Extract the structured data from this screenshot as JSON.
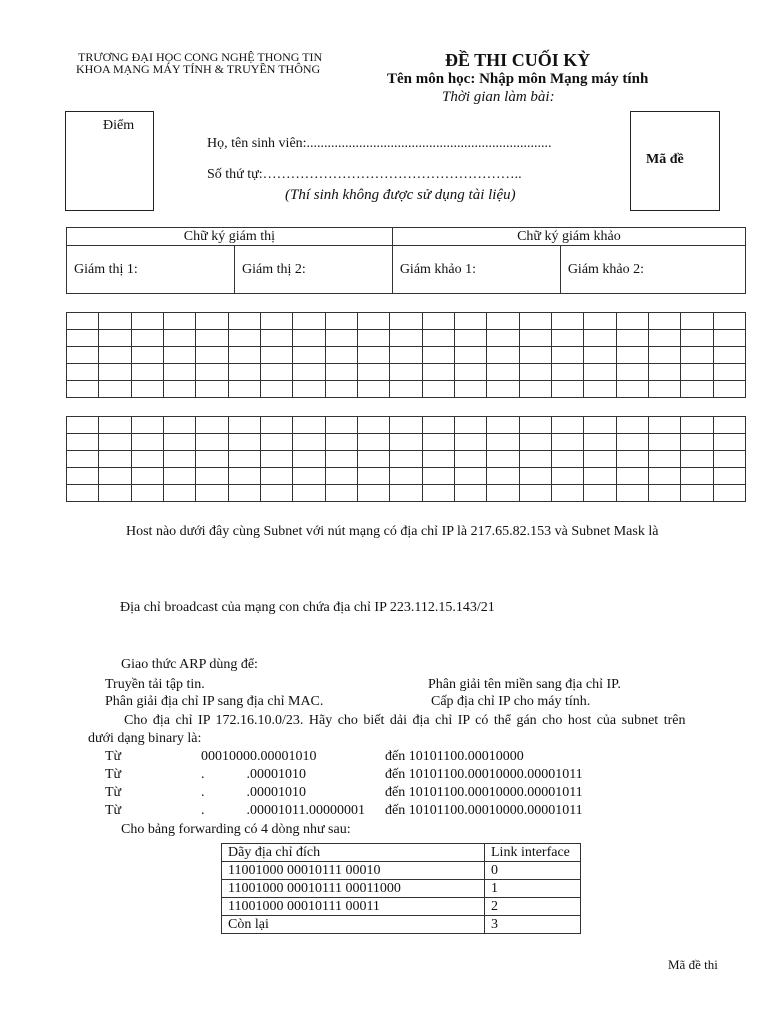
{
  "header": {
    "university": "TRƯƠNG ĐẠI HỌC CONG NGHỆ THONG TIN",
    "faculty": "KHOA MẠNG MÁY TÍNH & TRUYỀN THÔNG",
    "exam_title": "ĐỀ THI CUỐI KỲ",
    "subject": "Tên môn học: Nhập môn Mạng máy tính",
    "time": "Thời gian làm bài:"
  },
  "info": {
    "score_label": "Điểm",
    "name_label": "Họ, tên sinh viên:......................................................................",
    "seq_label": "Số thứ tự:………………………………………………..",
    "note": "(Thí sinh không được sử dụng tài liệu)",
    "code_label": "Mã đề"
  },
  "signatures": {
    "proctor_header": "Chữ ký giám thị",
    "examiner_header": "Chữ ký giám khảo",
    "proctor1": "Giám thị 1:",
    "proctor2": "Giám thị 2:",
    "examiner1": "Giám khảo 1:",
    "examiner2": "Giám khảo 2:"
  },
  "questions": {
    "q1": "Host nào dưới đây cùng Subnet với nút mạng có địa chỉ IP là 217.65.82.153 và Subnet Mask là",
    "q2": "Địa chỉ broadcast của mạng con chứa địa chỉ IP 223.112.15.143/21",
    "q3": "Giao thức ARP dùng để:",
    "q3_options": [
      "Truyền tải tập tin.",
      "Phân giải tên miền sang địa chỉ IP.",
      "Phân giải địa chỉ IP sang địa chỉ MAC.",
      "Cấp địa chỉ IP cho máy tính."
    ],
    "q4_line1": "Cho địa chỉ IP 172.16.10.0/23. Hãy cho biết dải địa chỉ IP có thể gán cho host của subnet trên",
    "q4_line2": "dưới dạng binary là:",
    "q4_options": [
      {
        "from": "Từ",
        "a": "00010000.00001010",
        "b": "đến 10101100.00010000"
      },
      {
        "from": "Từ",
        "a": ".            .00001010",
        "b": "đến 10101100.00010000.00001011"
      },
      {
        "from": "Từ",
        "a": ".            .00001010",
        "b": "đến 10101100.00010000.00001011"
      },
      {
        "from": "Từ",
        "a": ".            .00001011.00000001",
        "b": "đến 10101100.00010000.00001011"
      }
    ],
    "q5": "Cho bảng forwarding có 4 dòng như sau:",
    "forwarding_table": {
      "headers": [
        "Dãy địa chỉ đích",
        "Link interface"
      ],
      "rows": [
        [
          "11001000 00010111 00010",
          "0"
        ],
        [
          "11001000 00010111 00011000",
          "1"
        ],
        [
          "11001000 00010111 00011",
          "2"
        ],
        [
          "Còn lại",
          "3"
        ]
      ]
    }
  },
  "footer": {
    "code": "Mã đề thi"
  }
}
